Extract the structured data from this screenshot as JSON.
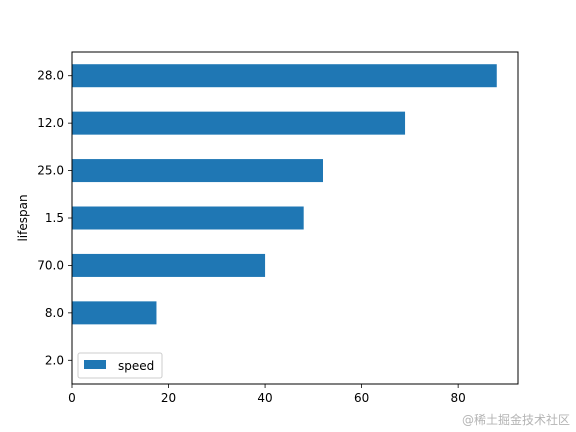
{
  "chart_data": {
    "type": "bar",
    "orientation": "horizontal",
    "categories": [
      "2.0",
      "8.0",
      "70.0",
      "1.5",
      "25.0",
      "12.0",
      "28.0"
    ],
    "series": [
      {
        "name": "speed",
        "values": [
          0,
          17.5,
          40,
          48,
          52,
          69,
          88
        ],
        "color": "#1f77b4"
      }
    ],
    "title": "",
    "xlabel": "",
    "ylabel": "lifespan",
    "xlim": [
      0,
      92.4
    ],
    "xticks": [
      "0",
      "20",
      "40",
      "60",
      "80"
    ],
    "grid": false,
    "legend_position": "lower-left"
  },
  "watermark": "@稀土掘金技术社区"
}
